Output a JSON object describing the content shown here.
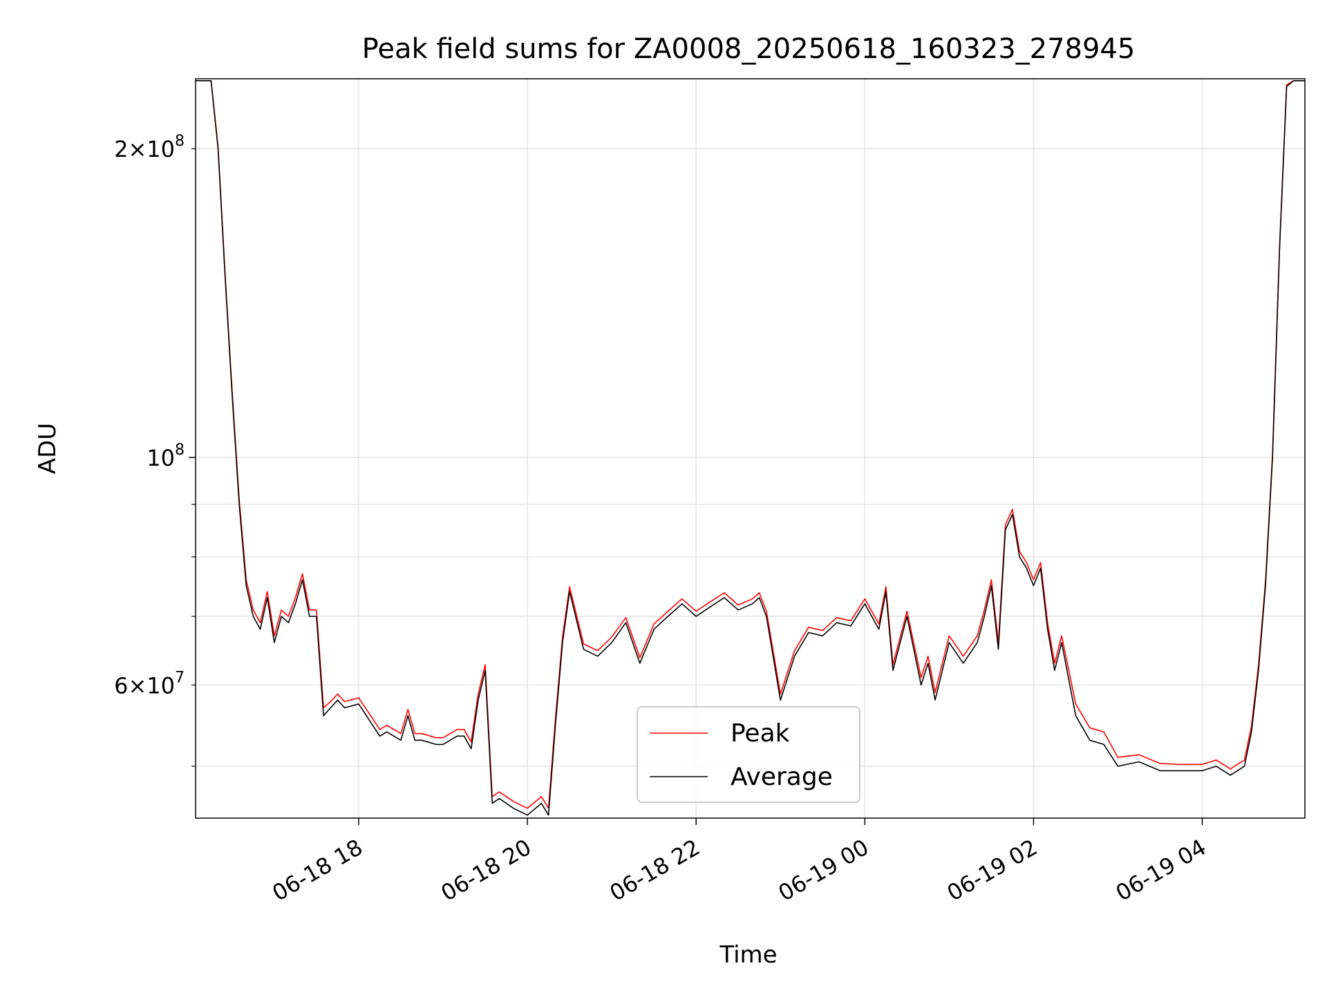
{
  "chart_data": {
    "type": "line",
    "title": "Peak field sums for ZA0008_20250618_160323_278945",
    "xlabel": "Time",
    "ylabel": "ADU",
    "yscale": "log",
    "xlim": [
      "2025-06-18 16:04",
      "2025-06-19 05:13"
    ],
    "ylim": [
      44500000,
      234000000
    ],
    "grid": true,
    "legend": {
      "placement": "lower-center",
      "entries": [
        {
          "name": "Peak",
          "color": "#ff0000"
        },
        {
          "name": "Average",
          "color": "#000000"
        }
      ]
    },
    "x_ticks": [
      {
        "value": "2025-06-18 18:00",
        "label": "06-18 18"
      },
      {
        "value": "2025-06-18 20:00",
        "label": "06-18 20"
      },
      {
        "value": "2025-06-18 22:00",
        "label": "06-18 22"
      },
      {
        "value": "2025-06-19 00:00",
        "label": "06-19 00"
      },
      {
        "value": "2025-06-19 02:00",
        "label": "06-19 02"
      },
      {
        "value": "2025-06-19 04:00",
        "label": "06-19 04"
      }
    ],
    "y_major_ticks": [
      {
        "value": 100000000,
        "base": "10",
        "exp": "8"
      }
    ],
    "y_minor_labeled_ticks": [
      {
        "value": 200000000,
        "mantissa": "2",
        "base": "10",
        "exp": "8"
      },
      {
        "value": 60000000,
        "mantissa": "6",
        "base": "10",
        "exp": "7"
      }
    ],
    "y_minor_ticks": [
      50000000,
      60000000,
      70000000,
      80000000,
      90000000,
      200000000
    ],
    "series": [
      {
        "name": "Average",
        "color": "#000000",
        "x": [
          "2025-06-18 16:04",
          "2025-06-18 16:15",
          "2025-06-18 16:20",
          "2025-06-18 16:25",
          "2025-06-18 16:30",
          "2025-06-18 16:35",
          "2025-06-18 16:40",
          "2025-06-18 16:45",
          "2025-06-18 16:50",
          "2025-06-18 16:55",
          "2025-06-18 17:00",
          "2025-06-18 17:05",
          "2025-06-18 17:10",
          "2025-06-18 17:15",
          "2025-06-18 17:20",
          "2025-06-18 17:25",
          "2025-06-18 17:30",
          "2025-06-18 17:35",
          "2025-06-18 17:40",
          "2025-06-18 17:45",
          "2025-06-18 17:50",
          "2025-06-18 18:00",
          "2025-06-18 18:15",
          "2025-06-18 18:20",
          "2025-06-18 18:30",
          "2025-06-18 18:35",
          "2025-06-18 18:40",
          "2025-06-18 18:45",
          "2025-06-18 18:55",
          "2025-06-18 19:00",
          "2025-06-18 19:10",
          "2025-06-18 19:15",
          "2025-06-18 19:20",
          "2025-06-18 19:25",
          "2025-06-18 19:30",
          "2025-06-18 19:35",
          "2025-06-18 19:40",
          "2025-06-18 19:45",
          "2025-06-18 19:50",
          "2025-06-18 20:00",
          "2025-06-18 20:10",
          "2025-06-18 20:15",
          "2025-06-18 20:20",
          "2025-06-18 20:25",
          "2025-06-18 20:30",
          "2025-06-18 20:40",
          "2025-06-18 20:50",
          "2025-06-18 21:00",
          "2025-06-18 21:10",
          "2025-06-18 21:20",
          "2025-06-18 21:30",
          "2025-06-18 21:40",
          "2025-06-18 21:50",
          "2025-06-18 22:00",
          "2025-06-18 22:10",
          "2025-06-18 22:20",
          "2025-06-18 22:30",
          "2025-06-18 22:40",
          "2025-06-18 22:45",
          "2025-06-18 22:50",
          "2025-06-18 23:00",
          "2025-06-18 23:10",
          "2025-06-18 23:20",
          "2025-06-18 23:30",
          "2025-06-18 23:40",
          "2025-06-18 23:50",
          "2025-06-19 00:00",
          "2025-06-19 00:10",
          "2025-06-19 00:15",
          "2025-06-19 00:20",
          "2025-06-19 00:30",
          "2025-06-19 00:40",
          "2025-06-19 00:45",
          "2025-06-19 00:50",
          "2025-06-19 01:00",
          "2025-06-19 01:10",
          "2025-06-19 01:20",
          "2025-06-19 01:25",
          "2025-06-19 01:30",
          "2025-06-19 01:35",
          "2025-06-19 01:40",
          "2025-06-19 01:45",
          "2025-06-19 01:50",
          "2025-06-19 01:55",
          "2025-06-19 02:00",
          "2025-06-19 02:05",
          "2025-06-19 02:10",
          "2025-06-19 02:15",
          "2025-06-19 02:20",
          "2025-06-19 02:30",
          "2025-06-19 02:40",
          "2025-06-19 02:50",
          "2025-06-19 03:00",
          "2025-06-19 03:15",
          "2025-06-19 03:30",
          "2025-06-19 03:45",
          "2025-06-19 04:00",
          "2025-06-19 04:10",
          "2025-06-19 04:20",
          "2025-06-19 04:30",
          "2025-06-19 04:35",
          "2025-06-19 04:40",
          "2025-06-19 04:45",
          "2025-06-19 04:50",
          "2025-06-19 04:55",
          "2025-06-19 05:00",
          "2025-06-19 05:05",
          "2025-06-19 05:13"
        ],
        "y": [
          233000000,
          233000000,
          200000000,
          150000000,
          115000000,
          90000000,
          75000000,
          70000000,
          68000000,
          73000000,
          66000000,
          70000000,
          69000000,
          72000000,
          76000000,
          70000000,
          70000000,
          56000000,
          57000000,
          58000000,
          57000000,
          57500000,
          53500000,
          54000000,
          53000000,
          56000000,
          53000000,
          53000000,
          52500000,
          52500000,
          53500000,
          53500000,
          52000000,
          58000000,
          62000000,
          46000000,
          46500000,
          46000000,
          45500000,
          44800000,
          46000000,
          44800000,
          55000000,
          66000000,
          74000000,
          65000000,
          64000000,
          66000000,
          69000000,
          63000000,
          68000000,
          70000000,
          72000000,
          70000000,
          71500000,
          73000000,
          71000000,
          72000000,
          73000000,
          70000000,
          58000000,
          64000000,
          67500000,
          67000000,
          69000000,
          68500000,
          72000000,
          68000000,
          74000000,
          62000000,
          70000000,
          60000000,
          63000000,
          58000000,
          66000000,
          63000000,
          66000000,
          70000000,
          75000000,
          65000000,
          85000000,
          88000000,
          80000000,
          78000000,
          75000000,
          78000000,
          68000000,
          62000000,
          66000000,
          56000000,
          53000000,
          52500000,
          50000000,
          50500000,
          49500000,
          49500000,
          49500000,
          50000000,
          49000000,
          50000000,
          54000000,
          62000000,
          75000000,
          100000000,
          160000000,
          230000000,
          233000000,
          233000000
        ]
      },
      {
        "name": "Peak",
        "color": "#ff0000",
        "x": [
          "2025-06-18 16:04",
          "2025-06-18 16:15",
          "2025-06-18 16:20",
          "2025-06-18 16:25",
          "2025-06-18 16:30",
          "2025-06-18 16:35",
          "2025-06-18 16:40",
          "2025-06-18 16:45",
          "2025-06-18 16:50",
          "2025-06-18 16:55",
          "2025-06-18 17:00",
          "2025-06-18 17:05",
          "2025-06-18 17:10",
          "2025-06-18 17:15",
          "2025-06-18 17:20",
          "2025-06-18 17:25",
          "2025-06-18 17:30",
          "2025-06-18 17:35",
          "2025-06-18 17:40",
          "2025-06-18 17:45",
          "2025-06-18 17:50",
          "2025-06-18 18:00",
          "2025-06-18 18:15",
          "2025-06-18 18:20",
          "2025-06-18 18:30",
          "2025-06-18 18:35",
          "2025-06-18 18:40",
          "2025-06-18 18:45",
          "2025-06-18 18:55",
          "2025-06-18 19:00",
          "2025-06-18 19:10",
          "2025-06-18 19:15",
          "2025-06-18 19:20",
          "2025-06-18 19:25",
          "2025-06-18 19:30",
          "2025-06-18 19:35",
          "2025-06-18 19:40",
          "2025-06-18 19:45",
          "2025-06-18 19:50",
          "2025-06-18 20:00",
          "2025-06-18 20:10",
          "2025-06-18 20:15",
          "2025-06-18 20:20",
          "2025-06-18 20:25",
          "2025-06-18 20:30",
          "2025-06-18 20:40",
          "2025-06-18 20:50",
          "2025-06-18 21:00",
          "2025-06-18 21:10",
          "2025-06-18 21:20",
          "2025-06-18 21:30",
          "2025-06-18 21:40",
          "2025-06-18 21:50",
          "2025-06-18 22:00",
          "2025-06-18 22:10",
          "2025-06-18 22:20",
          "2025-06-18 22:30",
          "2025-06-18 22:40",
          "2025-06-18 22:45",
          "2025-06-18 22:50",
          "2025-06-18 23:00",
          "2025-06-18 23:10",
          "2025-06-18 23:20",
          "2025-06-18 23:30",
          "2025-06-18 23:40",
          "2025-06-18 23:50",
          "2025-06-19 00:00",
          "2025-06-19 00:10",
          "2025-06-19 00:15",
          "2025-06-19 00:20",
          "2025-06-19 00:30",
          "2025-06-19 00:40",
          "2025-06-19 00:45",
          "2025-06-19 00:50",
          "2025-06-19 01:00",
          "2025-06-19 01:10",
          "2025-06-19 01:20",
          "2025-06-19 01:25",
          "2025-06-19 01:30",
          "2025-06-19 01:35",
          "2025-06-19 01:40",
          "2025-06-19 01:45",
          "2025-06-19 01:50",
          "2025-06-19 01:55",
          "2025-06-19 02:00",
          "2025-06-19 02:05",
          "2025-06-19 02:10",
          "2025-06-19 02:15",
          "2025-06-19 02:20",
          "2025-06-19 02:30",
          "2025-06-19 02:40",
          "2025-06-19 02:50",
          "2025-06-19 03:00",
          "2025-06-19 03:15",
          "2025-06-19 03:30",
          "2025-06-19 03:45",
          "2025-06-19 04:00",
          "2025-06-19 04:10",
          "2025-06-19 04:20",
          "2025-06-19 04:30",
          "2025-06-19 04:35",
          "2025-06-19 04:40",
          "2025-06-19 04:45",
          "2025-06-19 04:50",
          "2025-06-19 04:55",
          "2025-06-19 05:00",
          "2025-06-19 05:05",
          "2025-06-19 05:13"
        ],
        "y": [
          233000000,
          233000000,
          201000000,
          151000000,
          116000000,
          91000000,
          76000000,
          71000000,
          69000000,
          74000000,
          67000000,
          71000000,
          70000000,
          73000000,
          77000000,
          71000000,
          71000000,
          57000000,
          57800000,
          58800000,
          57800000,
          58300000,
          54300000,
          54800000,
          53800000,
          56800000,
          53800000,
          53800000,
          53300000,
          53300000,
          54300000,
          54300000,
          52800000,
          58800000,
          62800000,
          46700000,
          47200000,
          46700000,
          46200000,
          45500000,
          46700000,
          45500000,
          55800000,
          66800000,
          74800000,
          65800000,
          64800000,
          66800000,
          69800000,
          63800000,
          68800000,
          70800000,
          72800000,
          70800000,
          72300000,
          73800000,
          71800000,
          72800000,
          73800000,
          70800000,
          58800000,
          64800000,
          68300000,
          67800000,
          69800000,
          69300000,
          72800000,
          68800000,
          74800000,
          62800000,
          70800000,
          61000000,
          64000000,
          59000000,
          67000000,
          64000000,
          67000000,
          71000000,
          76000000,
          66000000,
          86000000,
          89000000,
          81000000,
          79000000,
          76000000,
          79000000,
          69000000,
          63000000,
          67000000,
          57500000,
          54500000,
          54000000,
          51000000,
          51300000,
          50300000,
          50200000,
          50200000,
          50700000,
          49700000,
          50700000,
          54700000,
          62700000,
          75700000,
          100800000,
          160800000,
          230800000,
          233000000,
          233000000
        ]
      }
    ]
  }
}
